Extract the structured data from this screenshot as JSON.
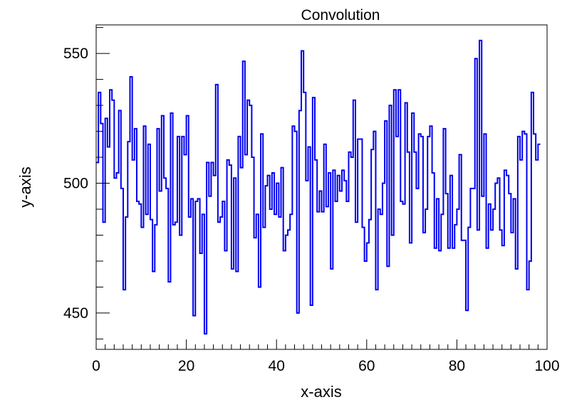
{
  "chart_data": {
    "type": "line",
    "style": "histogram-step",
    "title": "Convolution",
    "xlabel": "x-axis",
    "ylabel": "y-axis",
    "xlim": [
      0,
      100
    ],
    "ylim": [
      436,
      561
    ],
    "x_ticks": [
      0,
      20,
      40,
      60,
      80,
      100
    ],
    "y_ticks": [
      450,
      500,
      550
    ],
    "grid": false,
    "line_color": "#0000ee",
    "bin_width": 0.5,
    "series": [
      {
        "values": [
          508,
          535,
          523,
          485,
          525,
          514,
          536,
          532,
          502,
          504,
          528,
          498,
          459,
          487,
          516,
          541,
          509,
          521,
          493,
          492,
          483,
          522,
          488,
          515,
          486,
          466,
          484,
          521,
          497,
          526,
          502,
          498,
          462,
          527,
          484,
          485,
          518,
          480,
          518,
          511,
          526,
          487,
          494,
          449,
          493,
          494,
          473,
          488,
          442,
          508,
          495,
          508,
          503,
          538,
          485,
          487,
          493,
          474,
          509,
          507,
          467,
          502,
          466,
          518,
          506,
          547,
          511,
          532,
          530,
          510,
          479,
          488,
          460,
          519,
          483,
          499,
          503,
          490,
          504,
          488,
          500,
          487,
          506,
          474,
          480,
          482,
          488,
          522,
          520,
          450,
          528,
          551,
          535,
          501,
          514,
          453,
          533,
          509,
          489,
          497,
          489,
          515,
          491,
          504,
          467,
          505,
          493,
          503,
          497,
          505,
          501,
          493,
          512,
          510,
          532,
          485,
          517,
          517,
          483,
          470,
          477,
          486,
          513,
          520,
          459,
          490,
          488,
          500,
          524,
          468,
          530,
          480,
          536,
          518,
          536,
          493,
          492,
          531,
          512,
          477,
          527,
          512,
          498,
          519,
          518,
          481,
          490,
          518,
          522,
          504,
          475,
          494,
          474,
          488,
          521,
          496,
          475,
          503,
          475,
          484,
          490,
          511,
          478,
          478,
          451,
          483,
          498,
          498,
          548,
          482,
          555,
          495,
          519,
          475,
          492,
          482,
          490,
          500,
          502,
          482,
          476,
          505,
          503,
          496,
          481,
          494,
          467,
          518,
          509,
          520,
          519,
          459,
          470,
          535,
          519,
          509,
          515
        ]
      }
    ]
  }
}
